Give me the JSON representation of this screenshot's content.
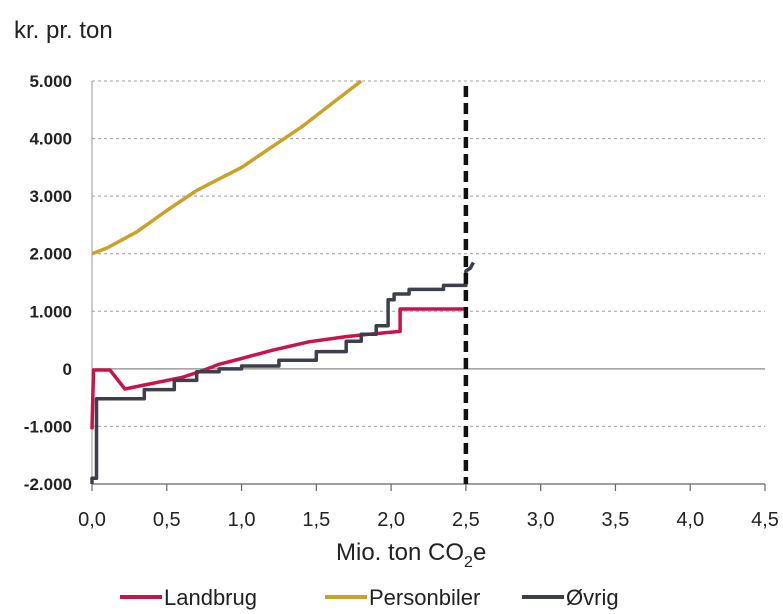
{
  "chart_data": {
    "type": "line",
    "ylabel": "kr. pr. ton",
    "xlabel_main": "Mio. ton CO",
    "xlabel_sub": "2",
    "xlabel_tail": "e",
    "xlim": [
      0,
      4.5
    ],
    "ylim": [
      -2000,
      5000
    ],
    "x_ticks": [
      0,
      0.5,
      1.0,
      1.5,
      2.0,
      2.5,
      3.0,
      3.5,
      4.0,
      4.5
    ],
    "x_tick_labels": [
      "0,0",
      "0,5",
      "1,0",
      "1,5",
      "2,0",
      "2,5",
      "3,0",
      "3,5",
      "4,0",
      "4,5"
    ],
    "y_ticks": [
      -2000,
      -1000,
      0,
      1000,
      2000,
      3000,
      4000,
      5000
    ],
    "y_tick_labels": [
      "-2.000",
      "-1.000",
      "0",
      "1.000",
      "2.000",
      "3.000",
      "4.000",
      "5.000"
    ],
    "grid": "horizontal dashed",
    "legend_position": "bottom",
    "reference_line": {
      "x": 2.5,
      "style": "dashed",
      "color": "#111111"
    },
    "series": [
      {
        "name": "Landbrug",
        "color": "#c8144a",
        "points": [
          [
            0.0,
            -1050
          ],
          [
            0.01,
            -20
          ],
          [
            0.12,
            -20
          ],
          [
            0.22,
            -350
          ],
          [
            0.35,
            -280
          ],
          [
            0.6,
            -150
          ],
          [
            0.72,
            -50
          ],
          [
            0.85,
            80
          ],
          [
            1.0,
            180
          ],
          [
            1.2,
            320
          ],
          [
            1.45,
            470
          ],
          [
            1.7,
            560
          ],
          [
            1.85,
            600
          ],
          [
            2.06,
            650
          ],
          [
            2.06,
            1040
          ],
          [
            2.5,
            1040
          ]
        ]
      },
      {
        "name": "Personbiler",
        "color": "#c9a227",
        "points": [
          [
            0.0,
            2000
          ],
          [
            0.1,
            2100
          ],
          [
            0.3,
            2380
          ],
          [
            0.5,
            2750
          ],
          [
            0.7,
            3100
          ],
          [
            0.85,
            3300
          ],
          [
            1.0,
            3500
          ],
          [
            1.2,
            3850
          ],
          [
            1.4,
            4200
          ],
          [
            1.6,
            4600
          ],
          [
            1.8,
            5000
          ]
        ]
      },
      {
        "name": "Øvrig",
        "color": "#3d3f4a",
        "points": [
          [
            0.0,
            -2000
          ],
          [
            0.0,
            -1900
          ],
          [
            0.03,
            -1900
          ],
          [
            0.03,
            -520
          ],
          [
            0.35,
            -520
          ],
          [
            0.35,
            -360
          ],
          [
            0.55,
            -360
          ],
          [
            0.55,
            -200
          ],
          [
            0.7,
            -200
          ],
          [
            0.7,
            -50
          ],
          [
            0.85,
            -50
          ],
          [
            0.85,
            0
          ],
          [
            1.0,
            0
          ],
          [
            1.0,
            50
          ],
          [
            1.25,
            50
          ],
          [
            1.25,
            150
          ],
          [
            1.5,
            150
          ],
          [
            1.5,
            300
          ],
          [
            1.7,
            300
          ],
          [
            1.7,
            480
          ],
          [
            1.8,
            480
          ],
          [
            1.8,
            600
          ],
          [
            1.9,
            600
          ],
          [
            1.9,
            750
          ],
          [
            1.98,
            750
          ],
          [
            1.98,
            1200
          ],
          [
            2.02,
            1200
          ],
          [
            2.02,
            1300
          ],
          [
            2.12,
            1300
          ],
          [
            2.12,
            1380
          ],
          [
            2.35,
            1380
          ],
          [
            2.35,
            1450
          ],
          [
            2.5,
            1450
          ],
          [
            2.5,
            1700
          ],
          [
            2.53,
            1750
          ],
          [
            2.55,
            1850
          ]
        ]
      }
    ]
  }
}
